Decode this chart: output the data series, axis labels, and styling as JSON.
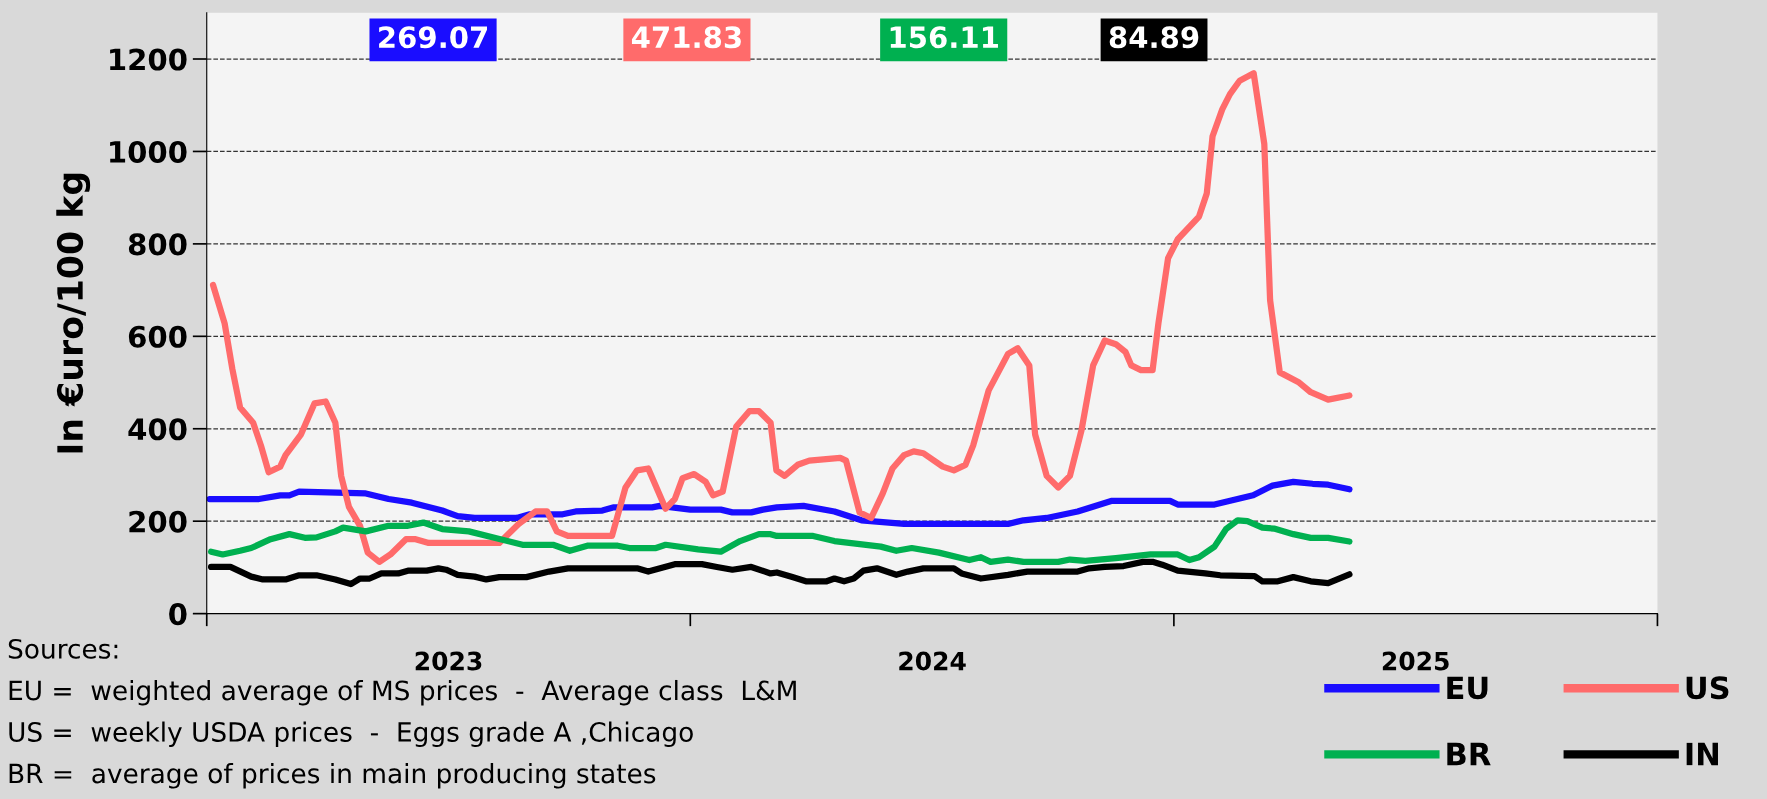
{
  "chart_data": {
    "type": "line",
    "ylabel": "In €uro/100 kg",
    "xlim": [
      2023,
      2026
    ],
    "ylim": [
      0,
      1300
    ],
    "xticks": [
      {
        "value": 2023,
        "label": null
      },
      {
        "value": 2023.5,
        "label": "2023"
      },
      {
        "value": 2024,
        "label": null
      },
      {
        "value": 2024.5,
        "label": "2024"
      },
      {
        "value": 2025,
        "label": null
      },
      {
        "value": 2025.5,
        "label": "2025"
      },
      {
        "value": 2026,
        "label": null
      }
    ],
    "yticks": [
      0,
      200,
      400,
      600,
      800,
      1000,
      1200
    ],
    "grid": "y",
    "legend": "bottom right",
    "line_style": "solid",
    "marker": "none",
    "annotations": [
      "269.07",
      "471.83",
      "156.11",
      "84.89",
      "Sources:",
      "EU =  weighted average of MS prices  -  Average class  L&M",
      "US =  weekly USDA prices  -  Eggs grade A ,Chicago",
      "BR =  average of prices in main producing states"
    ],
    "series": [
      {
        "name": "EU",
        "color": "#1a0dff",
        "x": [
          2023.006,
          2023.108,
          2023.152,
          2023.171,
          2023.191,
          2023.329,
          2023.376,
          2023.424,
          2023.487,
          2023.519,
          2023.554,
          2023.641,
          2023.668,
          2023.736,
          2023.763,
          2023.818,
          2023.842,
          2023.921,
          2023.937,
          2024.0,
          2024.063,
          2024.087,
          2024.126,
          2024.15,
          2024.179,
          2024.234,
          2024.298,
          2024.354,
          2024.442,
          2024.657,
          2024.689,
          2024.737,
          2024.801,
          2024.872,
          2024.992,
          2025.008,
          2025.084,
          2025.164,
          2025.204,
          2025.247,
          2025.287,
          2025.319,
          2025.363
        ],
        "values": [
          248,
          248,
          256,
          256,
          264,
          260,
          248,
          240,
          223,
          211,
          207,
          207,
          215,
          215,
          221,
          223,
          230,
          230,
          233,
          225,
          225,
          219,
          219,
          225,
          230,
          233,
          221,
          202,
          194,
          194,
          202,
          207,
          221,
          244,
          244,
          236,
          236,
          256,
          277,
          285,
          281,
          279,
          269
        ]
      },
      {
        "name": "US",
        "color": "#ff6b6b",
        "x": [
          2023.013,
          2023.037,
          2023.053,
          2023.069,
          2023.096,
          2023.112,
          2023.128,
          2023.152,
          2023.163,
          2023.195,
          2023.223,
          2023.246,
          2023.266,
          2023.278,
          2023.294,
          2023.317,
          2023.333,
          2023.357,
          2023.38,
          2023.412,
          2023.432,
          2023.459,
          2023.605,
          2023.645,
          2023.68,
          2023.704,
          2023.724,
          2023.747,
          2023.838,
          2023.866,
          2023.89,
          2023.913,
          2023.949,
          2023.968,
          2023.984,
          2024.008,
          2024.032,
          2024.047,
          2024.067,
          2024.095,
          2024.122,
          2024.142,
          2024.166,
          2024.178,
          2024.195,
          2024.222,
          2024.246,
          2024.31,
          2024.322,
          2024.35,
          2024.374,
          2024.398,
          2024.418,
          2024.442,
          2024.462,
          2024.482,
          2024.522,
          2024.545,
          2024.569,
          2024.585,
          2024.617,
          2024.657,
          2024.677,
          2024.701,
          2024.713,
          2024.737,
          2024.761,
          2024.785,
          2024.809,
          2024.833,
          2024.857,
          2024.88,
          2024.9,
          2024.912,
          2024.932,
          2024.956,
          2024.968,
          2024.988,
          2025.008,
          2025.052,
          2025.068,
          2025.08,
          2025.1,
          2025.116,
          2025.136,
          2025.165,
          2025.187,
          2025.199,
          2025.219,
          2025.259,
          2025.283,
          2025.319,
          2025.363
        ],
        "values": [
          711,
          628,
          529,
          446,
          413,
          364,
          306,
          318,
          343,
          388,
          455,
          459,
          413,
          298,
          231,
          190,
          132,
          112,
          128,
          161,
          161,
          153,
          153,
          194,
          221,
          221,
          178,
          168,
          168,
          273,
          310,
          314,
          227,
          248,
          293,
          302,
          285,
          256,
          264,
          405,
          438,
          438,
          413,
          310,
          298,
          322,
          331,
          337,
          331,
          219,
          207,
          260,
          314,
          343,
          351,
          347,
          318,
          310,
          322,
          364,
          483,
          562,
          574,
          537,
          388,
          298,
          273,
          298,
          397,
          537,
          591,
          583,
          566,
          537,
          527,
          527,
          628,
          769,
          810,
          859,
          909,
          1033,
          1091,
          1124,
          1153,
          1169,
          1016,
          678,
          522,
          500,
          479,
          463,
          472
        ]
      },
      {
        "name": "BR",
        "color": "#00b050",
        "x": [
          2023.009,
          2023.033,
          2023.069,
          2023.092,
          2023.132,
          2023.171,
          2023.203,
          2023.227,
          2023.266,
          2023.282,
          2023.329,
          2023.376,
          2023.416,
          2023.448,
          2023.487,
          2023.542,
          2023.653,
          2023.716,
          2023.751,
          2023.787,
          2023.85,
          2023.874,
          2023.929,
          2023.949,
          2024.016,
          2024.063,
          2024.103,
          2024.142,
          2024.166,
          2024.179,
          2024.254,
          2024.298,
          2024.394,
          2024.426,
          2024.458,
          2024.514,
          2024.577,
          2024.601,
          2024.621,
          2024.657,
          2024.689,
          2024.761,
          2024.785,
          2024.817,
          2024.88,
          2024.952,
          2025.008,
          2025.032,
          2025.052,
          2025.084,
          2025.108,
          2025.132,
          2025.152,
          2025.183,
          2025.207,
          2025.247,
          2025.283,
          2025.319,
          2025.363
        ],
        "values": [
          134,
          128,
          136,
          142,
          161,
          172,
          164,
          165,
          178,
          186,
          178,
          190,
          190,
          197,
          183,
          178,
          149,
          149,
          136,
          147,
          147,
          142,
          142,
          149,
          139,
          134,
          157,
          172,
          172,
          168,
          168,
          157,
          145,
          136,
          142,
          132,
          116,
          122,
          112,
          117,
          112,
          112,
          117,
          114,
          120,
          128,
          128,
          116,
          122,
          145,
          183,
          202,
          200,
          186,
          184,
          172,
          164,
          164,
          156
        ]
      },
      {
        "name": "IN",
        "color": "#000000",
        "x": [
          2023.009,
          2023.049,
          2023.092,
          2023.116,
          2023.163,
          2023.191,
          2023.227,
          2023.266,
          2023.298,
          2023.317,
          2023.337,
          2023.361,
          2023.396,
          2023.416,
          2023.455,
          2023.479,
          2023.495,
          2023.519,
          2023.554,
          2023.578,
          2023.605,
          2023.661,
          2023.708,
          2023.747,
          2023.89,
          2023.913,
          2023.968,
          2024.024,
          2024.055,
          2024.087,
          2024.126,
          2024.166,
          2024.179,
          2024.211,
          2024.239,
          2024.282,
          2024.298,
          2024.318,
          2024.338,
          2024.358,
          2024.386,
          2024.426,
          2024.45,
          2024.482,
          2024.545,
          2024.561,
          2024.601,
          2024.657,
          2024.697,
          2024.801,
          2024.825,
          2024.857,
          2024.896,
          2024.936,
          2024.956,
          2024.976,
          2025.008,
          2025.065,
          2025.096,
          2025.167,
          2025.183,
          2025.215,
          2025.247,
          2025.283,
          2025.319,
          2025.363
        ],
        "values": [
          101,
          101,
          80,
          74,
          74,
          83,
          83,
          74,
          64,
          76,
          76,
          87,
          87,
          93,
          93,
          98,
          95,
          84,
          80,
          74,
          79,
          79,
          91,
          98,
          98,
          91,
          107,
          107,
          101,
          95,
          101,
          87,
          89,
          79,
          70,
          70,
          76,
          70,
          76,
          93,
          98,
          84,
          91,
          98,
          98,
          87,
          76,
          84,
          91,
          91,
          98,
          101,
          103,
          112,
          112,
          106,
          93,
          87,
          83,
          81,
          70,
          70,
          79,
          70,
          66,
          85
        ]
      }
    ]
  }
}
